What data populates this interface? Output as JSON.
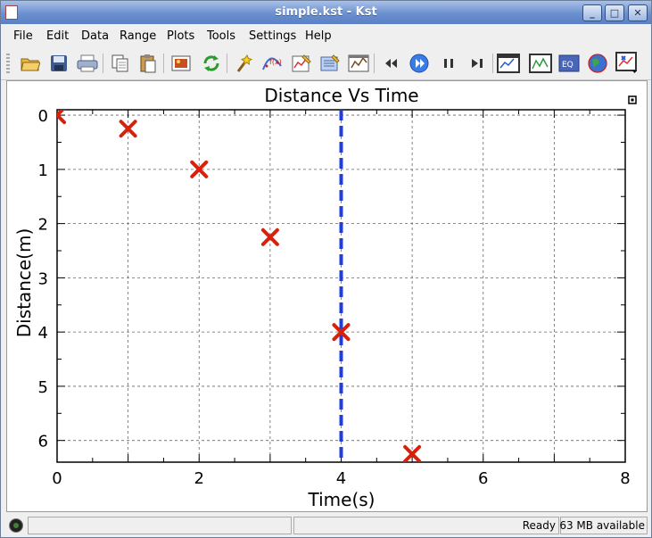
{
  "window": {
    "title": "simple.kst - Kst",
    "buttons": [
      "minimize",
      "maximize",
      "close"
    ]
  },
  "menu": [
    "File",
    "Edit",
    "Data",
    "Range",
    "Plots",
    "Tools",
    "Settings",
    "Help"
  ],
  "toolbar": {
    "icons": [
      "open-folder-icon",
      "save-icon",
      "print-icon",
      "copy-icon",
      "paste-icon",
      "export-image-icon",
      "reload-icon",
      "wizard-icon",
      "fit-icon",
      "plot-dialog-icon",
      "data-manager-icon",
      "view-manager-icon",
      "back-icon",
      "play-icon",
      "pause-icon",
      "advance-icon",
      "layout-mode-icon",
      "xy-zoom-icon",
      "event-monitor-icon",
      "globe-icon",
      "cursor-mode-icon"
    ]
  },
  "status": {
    "text": "Ready",
    "memory": "63 MB available"
  },
  "colors": {
    "marker": "#d8200a",
    "vertical_line": "#1f3de0",
    "title_bar": "#6b8fcf"
  },
  "chart_data": {
    "type": "scatter",
    "title": "Distance Vs Time",
    "xlabel": "Time(s)",
    "ylabel": "Distance(m)",
    "xlim": [
      0,
      8
    ],
    "ylim": [
      6.4,
      -0.1
    ],
    "y_inverted": true,
    "x_ticks": [
      "0",
      "2",
      "4",
      "6",
      "8"
    ],
    "y_ticks": [
      "0",
      "1",
      "2",
      "3",
      "4",
      "5",
      "6"
    ],
    "grid": true,
    "x": [
      0,
      1,
      2,
      3,
      4,
      5
    ],
    "y": [
      0,
      0.25,
      1,
      2.25,
      4,
      6.25
    ],
    "marker": "x",
    "vertical_line_x": 4
  }
}
